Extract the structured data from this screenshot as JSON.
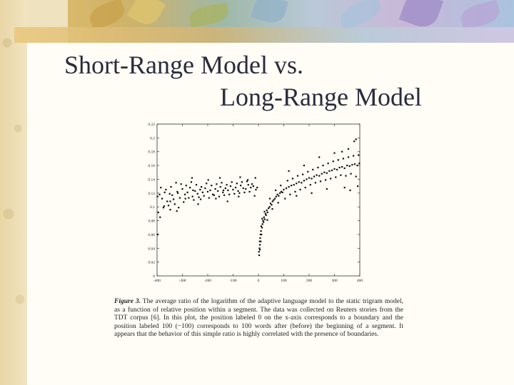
{
  "slide": {
    "title_line1": "Short-Range Model vs.",
    "title_line2": "Long-Range Model"
  },
  "caption": {
    "figure_label": "Figure 3.",
    "text": "The average ratio of the logarithm of the adaptive language model to the static trigram model, as a function of relative position within a segment. The data was collected on Reuters stories from the TDT corpus [6]. In this plot, the position labeled 0 on the x-axis corresponds to a boundary and the position labeled 100 (−100) corresponds to 100 words after (before) the beginning of a segment. It appears that the behavior of this simple ratio is highly correlated with the presence of boundaries."
  },
  "colors": {
    "points": "#111111",
    "title": "#2b2b3a",
    "background": "#fffdf6"
  },
  "chart_data": {
    "type": "scatter",
    "title": "",
    "xlabel": "",
    "ylabel": "",
    "xlim": [
      -400,
      400
    ],
    "ylim": [
      0,
      0.22
    ],
    "x_ticks": [
      -400,
      -300,
      -200,
      -100,
      0,
      100,
      200,
      300,
      400
    ],
    "x_tick_labels": [
      "-400",
      "-300",
      "-200",
      "-100",
      "0",
      "100",
      "200",
      "300",
      "400"
    ],
    "y_ticks": [
      0,
      0.02,
      0.04,
      0.06,
      0.08,
      0.1,
      0.12,
      0.14,
      0.16,
      0.18,
      0.2,
      0.22
    ],
    "y_tick_labels": [
      "0",
      "0.02",
      "0.04",
      "0.06",
      "0.08",
      "0.1",
      "0.12",
      "0.14",
      "0.16",
      "0.18",
      "0.2",
      "0.22"
    ],
    "grid": false,
    "series": [
      {
        "points": [
          [
            -398,
            0.115
          ],
          [
            -390,
            0.118
          ],
          [
            -380,
            0.112
          ],
          [
            -370,
            0.121
          ],
          [
            -360,
            0.108
          ],
          [
            -350,
            0.119
          ],
          [
            -340,
            0.117
          ],
          [
            -330,
            0.104
          ],
          [
            -320,
            0.122
          ],
          [
            -310,
            0.113
          ],
          [
            -300,
            0.126
          ],
          [
            -290,
            0.118
          ],
          [
            -280,
            0.121
          ],
          [
            -270,
            0.128
          ],
          [
            -260,
            0.115
          ],
          [
            -250,
            0.123
          ],
          [
            -240,
            0.119
          ],
          [
            -230,
            0.125
          ],
          [
            -220,
            0.121
          ],
          [
            -210,
            0.127
          ],
          [
            -200,
            0.122
          ],
          [
            -190,
            0.124
          ],
          [
            -180,
            0.118
          ],
          [
            -170,
            0.126
          ],
          [
            -160,
            0.123
          ],
          [
            -150,
            0.129
          ],
          [
            -140,
            0.121
          ],
          [
            -130,
            0.127
          ],
          [
            -120,
            0.124
          ],
          [
            -110,
            0.13
          ],
          [
            -100,
            0.125
          ],
          [
            -90,
            0.128
          ],
          [
            -80,
            0.123
          ],
          [
            -70,
            0.131
          ],
          [
            -60,
            0.127
          ],
          [
            -50,
            0.126
          ],
          [
            -40,
            0.132
          ],
          [
            -30,
            0.128
          ],
          [
            -20,
            0.13
          ],
          [
            -10,
            0.125
          ],
          [
            -395,
            0.092
          ],
          [
            -385,
            0.128
          ],
          [
            -375,
            0.099
          ],
          [
            -365,
            0.125
          ],
          [
            -355,
            0.102
          ],
          [
            -345,
            0.129
          ],
          [
            -335,
            0.111
          ],
          [
            -325,
            0.135
          ],
          [
            -315,
            0.099
          ],
          [
            -305,
            0.133
          ],
          [
            -295,
            0.107
          ],
          [
            -285,
            0.131
          ],
          [
            -275,
            0.113
          ],
          [
            -265,
            0.136
          ],
          [
            -255,
            0.11
          ],
          [
            -245,
            0.132
          ],
          [
            -235,
            0.114
          ],
          [
            -225,
            0.129
          ],
          [
            -215,
            0.116
          ],
          [
            -205,
            0.134
          ],
          [
            -195,
            0.113
          ],
          [
            -185,
            0.131
          ],
          [
            -175,
            0.117
          ],
          [
            -165,
            0.133
          ],
          [
            -155,
            0.115
          ],
          [
            -145,
            0.135
          ],
          [
            -135,
            0.117
          ],
          [
            -125,
            0.132
          ],
          [
            -115,
            0.118
          ],
          [
            -105,
            0.136
          ],
          [
            -95,
            0.119
          ],
          [
            -85,
            0.134
          ],
          [
            -75,
            0.12
          ],
          [
            -65,
            0.136
          ],
          [
            -55,
            0.121
          ],
          [
            -45,
            0.137
          ],
          [
            -35,
            0.122
          ],
          [
            -25,
            0.133
          ],
          [
            -15,
            0.116
          ],
          [
            -5,
            0.128
          ],
          [
            -398,
            0.06
          ],
          [
            -388,
            0.085
          ],
          [
            -372,
            0.101
          ],
          [
            -348,
            0.096
          ],
          [
            -322,
            0.094
          ],
          [
            -262,
            0.142
          ],
          [
            -238,
            0.104
          ],
          [
            -198,
            0.139
          ],
          [
            -152,
            0.142
          ],
          [
            -122,
            0.108
          ],
          [
            -72,
            0.143
          ],
          [
            -42,
            0.139
          ],
          [
            -12,
            0.142
          ],
          [
            -348,
            0.108
          ],
          [
            -318,
            0.12
          ],
          [
            -288,
            0.112
          ],
          [
            -258,
            0.124
          ],
          [
            -228,
            0.111
          ],
          [
            -168,
            0.112
          ],
          [
            -138,
            0.124
          ],
          [
            -78,
            0.115
          ],
          [
            2,
            0.035
          ],
          [
            4,
            0.04
          ],
          [
            5,
            0.05
          ],
          [
            6,
            0.045
          ],
          [
            7,
            0.055
          ],
          [
            8,
            0.06
          ],
          [
            9,
            0.05
          ],
          [
            10,
            0.065
          ],
          [
            12,
            0.06
          ],
          [
            14,
            0.07
          ],
          [
            16,
            0.075
          ],
          [
            18,
            0.08
          ],
          [
            20,
            0.078
          ],
          [
            22,
            0.085
          ],
          [
            25,
            0.082
          ],
          [
            28,
            0.09
          ],
          [
            30,
            0.088
          ],
          [
            33,
            0.095
          ],
          [
            36,
            0.092
          ],
          [
            40,
            0.098
          ],
          [
            44,
            0.1
          ],
          [
            48,
            0.105
          ],
          [
            52,
            0.103
          ],
          [
            56,
            0.108
          ],
          [
            60,
            0.11
          ],
          [
            65,
            0.112
          ],
          [
            70,
            0.115
          ],
          [
            75,
            0.118
          ],
          [
            80,
            0.116
          ],
          [
            85,
            0.12
          ],
          [
            90,
            0.122
          ],
          [
            95,
            0.121
          ],
          [
            100,
            0.125
          ],
          [
            110,
            0.127
          ],
          [
            120,
            0.129
          ],
          [
            130,
            0.131
          ],
          [
            140,
            0.132
          ],
          [
            150,
            0.134
          ],
          [
            160,
            0.136
          ],
          [
            170,
            0.135
          ],
          [
            180,
            0.138
          ],
          [
            190,
            0.14
          ],
          [
            200,
            0.142
          ],
          [
            210,
            0.141
          ],
          [
            220,
            0.144
          ],
          [
            230,
            0.146
          ],
          [
            240,
            0.145
          ],
          [
            250,
            0.148
          ],
          [
            260,
            0.15
          ],
          [
            270,
            0.149
          ],
          [
            280,
            0.152
          ],
          [
            290,
            0.153
          ],
          [
            300,
            0.155
          ],
          [
            310,
            0.154
          ],
          [
            320,
            0.157
          ],
          [
            330,
            0.158
          ],
          [
            340,
            0.156
          ],
          [
            350,
            0.16
          ],
          [
            360,
            0.159
          ],
          [
            370,
            0.161
          ],
          [
            380,
            0.162
          ],
          [
            390,
            0.16
          ],
          [
            398,
            0.163
          ],
          [
            3,
            0.03
          ],
          [
            6,
            0.038
          ],
          [
            11,
            0.072
          ],
          [
            15,
            0.083
          ],
          [
            24,
            0.093
          ],
          [
            35,
            0.081
          ],
          [
            45,
            0.112
          ],
          [
            55,
            0.097
          ],
          [
            68,
            0.124
          ],
          [
            78,
            0.106
          ],
          [
            88,
            0.131
          ],
          [
            105,
            0.112
          ],
          [
            115,
            0.138
          ],
          [
            125,
            0.118
          ],
          [
            135,
            0.141
          ],
          [
            145,
            0.122
          ],
          [
            155,
            0.145
          ],
          [
            165,
            0.125
          ],
          [
            175,
            0.147
          ],
          [
            185,
            0.128
          ],
          [
            195,
            0.151
          ],
          [
            205,
            0.132
          ],
          [
            215,
            0.154
          ],
          [
            225,
            0.135
          ],
          [
            235,
            0.157
          ],
          [
            245,
            0.137
          ],
          [
            255,
            0.16
          ],
          [
            265,
            0.139
          ],
          [
            275,
            0.163
          ],
          [
            285,
            0.141
          ],
          [
            295,
            0.166
          ],
          [
            305,
            0.143
          ],
          [
            315,
            0.168
          ],
          [
            325,
            0.146
          ],
          [
            335,
            0.17
          ],
          [
            345,
            0.145
          ],
          [
            355,
            0.172
          ],
          [
            365,
            0.148
          ],
          [
            375,
            0.174
          ],
          [
            385,
            0.144
          ],
          [
            395,
            0.175
          ],
          [
            330,
            0.18
          ],
          [
            355,
            0.184
          ],
          [
            378,
            0.195
          ],
          [
            385,
            0.198
          ],
          [
            340,
            0.128
          ],
          [
            362,
            0.124
          ],
          [
            392,
            0.13
          ],
          [
            270,
            0.126
          ],
          [
            210,
            0.12
          ],
          [
            150,
            0.116
          ],
          [
            240,
            0.172
          ],
          [
            300,
            0.178
          ],
          [
            180,
            0.16
          ],
          [
            120,
            0.152
          ]
        ]
      }
    ]
  }
}
